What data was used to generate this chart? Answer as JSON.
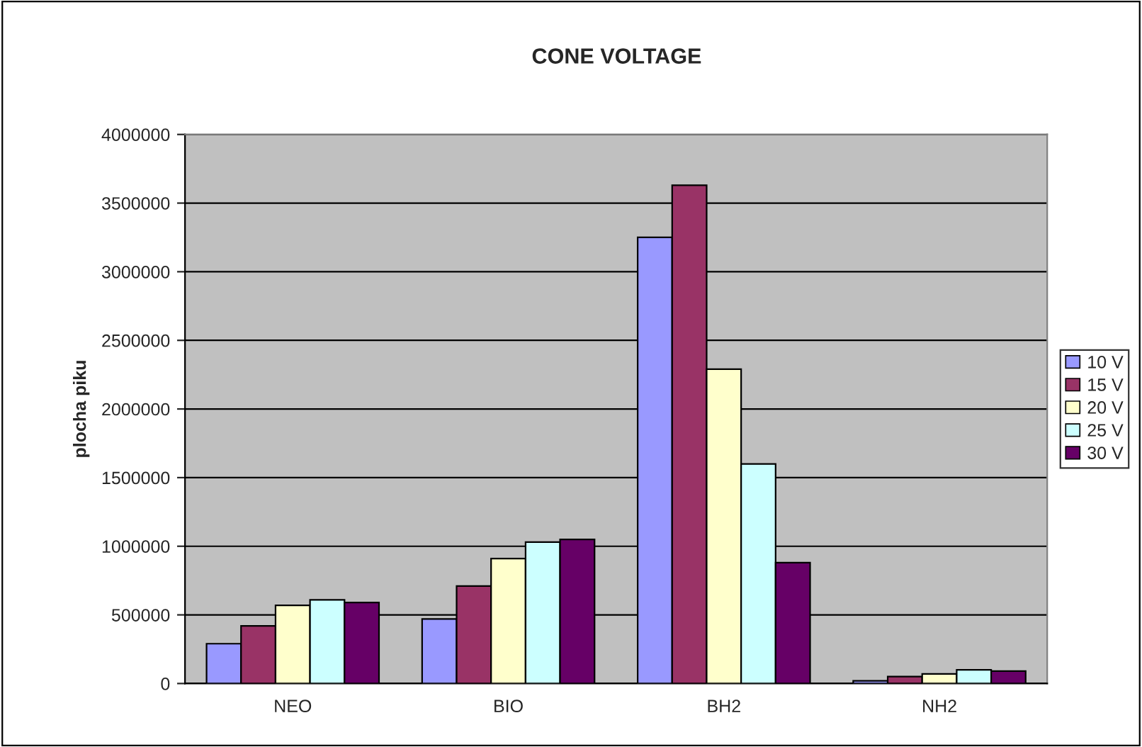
{
  "chart_data": {
    "type": "bar",
    "title": "CONE VOLTAGE",
    "ylabel": "plocha piku",
    "categories": [
      "NEO",
      "BIO",
      "BH2",
      "NH2"
    ],
    "series": [
      {
        "name": "10 V",
        "color": "#9999ff",
        "values": [
          290000,
          470000,
          3250000,
          20000
        ]
      },
      {
        "name": "15 V",
        "color": "#993366",
        "values": [
          420000,
          710000,
          3630000,
          50000
        ]
      },
      {
        "name": "20 V",
        "color": "#ffffcc",
        "values": [
          570000,
          910000,
          2290000,
          70000
        ]
      },
      {
        "name": "25 V",
        "color": "#ccffff",
        "values": [
          610000,
          1030000,
          1600000,
          100000
        ]
      },
      {
        "name": "30 V",
        "color": "#660066",
        "values": [
          590000,
          1050000,
          880000,
          90000
        ]
      }
    ],
    "ylim": [
      0,
      4000000
    ],
    "yticks": [
      0,
      500000,
      1000000,
      1500000,
      2000000,
      2500000,
      3000000,
      3500000,
      4000000
    ],
    "grid": "y",
    "legend": "right"
  }
}
